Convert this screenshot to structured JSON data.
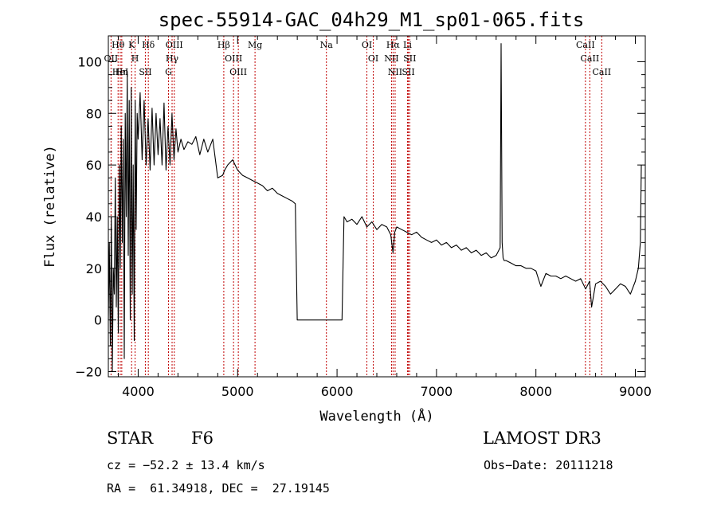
{
  "chart_data": {
    "type": "line",
    "title": "spec-55914-GAC_04h29_M1_sp01-065.fits",
    "xlabel": "Wavelength (Å)",
    "ylabel": "Flux (relative)",
    "xlim": [
      3700,
      9100
    ],
    "ylim": [
      -22,
      110
    ],
    "xticks": [
      4000,
      5000,
      6000,
      7000,
      8000,
      9000
    ],
    "yticks": [
      -20,
      0,
      20,
      40,
      60,
      80,
      100
    ],
    "xtick_labels": [
      "4000",
      "5000",
      "6000",
      "7000",
      "8000",
      "9000"
    ],
    "ytick_labels": [
      "−20",
      "0",
      "20",
      "40",
      "60",
      "80",
      "100"
    ],
    "series": [
      {
        "name": "flux",
        "x": [
          3700,
          3710,
          3720,
          3730,
          3740,
          3750,
          3760,
          3770,
          3780,
          3790,
          3800,
          3810,
          3820,
          3830,
          3840,
          3850,
          3860,
          3870,
          3880,
          3890,
          3900,
          3910,
          3920,
          3930,
          3940,
          3950,
          3960,
          3970,
          3980,
          3990,
          4000,
          4020,
          4040,
          4060,
          4080,
          4100,
          4120,
          4140,
          4160,
          4180,
          4200,
          4220,
          4240,
          4260,
          4280,
          4300,
          4320,
          4340,
          4360,
          4380,
          4400,
          4430,
          4460,
          4500,
          4540,
          4580,
          4620,
          4660,
          4700,
          4750,
          4800,
          4850,
          4870,
          4900,
          4950,
          5000,
          5050,
          5100,
          5150,
          5200,
          5250,
          5300,
          5350,
          5400,
          5450,
          5500,
          5550,
          5580,
          5600,
          6050,
          6070,
          6100,
          6150,
          6200,
          6250,
          6300,
          6350,
          6400,
          6450,
          6500,
          6540,
          6563,
          6580,
          6600,
          6650,
          6700,
          6750,
          6800,
          6850,
          6900,
          6950,
          7000,
          7050,
          7100,
          7150,
          7200,
          7250,
          7300,
          7350,
          7400,
          7450,
          7500,
          7550,
          7600,
          7640,
          7650,
          7660,
          7670,
          7680,
          7700,
          7750,
          7800,
          7850,
          7900,
          7950,
          8000,
          8050,
          8100,
          8150,
          8200,
          8250,
          8300,
          8350,
          8400,
          8450,
          8500,
          8540,
          8560,
          8600,
          8650,
          8700,
          8750,
          8800,
          8850,
          8900,
          8950,
          9000,
          9030,
          9050,
          9060
        ],
        "y": [
          0,
          30,
          -10,
          40,
          -20,
          20,
          10,
          55,
          5,
          40,
          -5,
          60,
          20,
          75,
          30,
          70,
          -15,
          80,
          40,
          95,
          25,
          85,
          0,
          90,
          10,
          60,
          -8,
          85,
          35,
          80,
          70,
          88,
          62,
          85,
          60,
          78,
          58,
          82,
          60,
          80,
          64,
          78,
          60,
          84,
          58,
          75,
          60,
          80,
          62,
          74,
          65,
          70,
          66,
          69,
          68,
          71,
          64,
          70,
          65,
          70,
          55,
          56,
          58,
          60,
          62,
          58,
          56,
          55,
          54,
          53,
          52,
          50,
          51,
          49,
          48,
          47,
          46,
          45,
          0,
          0,
          40,
          38,
          39,
          37,
          40,
          36,
          38,
          35,
          37,
          36,
          33,
          26,
          34,
          36,
          35,
          34,
          33,
          34,
          32,
          31,
          30,
          31,
          29,
          30,
          28,
          29,
          27,
          28,
          26,
          27,
          25,
          26,
          24,
          25,
          28,
          107,
          30,
          24,
          23,
          23,
          22,
          21,
          21,
          20,
          20,
          19,
          13,
          18,
          17,
          17,
          16,
          17,
          16,
          15,
          16,
          12,
          15,
          5,
          14,
          15,
          13,
          10,
          12,
          14,
          13,
          10,
          15,
          20,
          30,
          60
        ]
      }
    ],
    "lines": [
      {
        "name": "Hθ",
        "x": 3798
      },
      {
        "name": "OII",
        "x": 3727
      },
      {
        "name": "HeI",
        "x": 3820
      },
      {
        "name": "Hη",
        "x": 3835
      },
      {
        "name": "K",
        "x": 3934
      },
      {
        "name": "H",
        "x": 3969
      },
      {
        "name": "Hδ",
        "x": 4102
      },
      {
        "name": "SII",
        "x": 4072
      },
      {
        "name": "OIII",
        "x": 4363
      },
      {
        "name": "Hγ",
        "x": 4341
      },
      {
        "name": "G",
        "x": 4305
      },
      {
        "name": "Hβ",
        "x": 4861
      },
      {
        "name": "OIII",
        "x": 4959
      },
      {
        "name": "OIII",
        "x": 5007
      },
      {
        "name": "Mg",
        "x": 5175
      },
      {
        "name": "Na",
        "x": 5893
      },
      {
        "name": "OI",
        "x": 6300
      },
      {
        "name": "OI",
        "x": 6364
      },
      {
        "name": "Hα",
        "x": 6563
      },
      {
        "name": "NII",
        "x": 6548
      },
      {
        "name": "NII",
        "x": 6584
      },
      {
        "name": "Li",
        "x": 6708
      },
      {
        "name": "SII",
        "x": 6717
      },
      {
        "name": "SII",
        "x": 6731
      },
      {
        "name": "CaII",
        "x": 8498
      },
      {
        "name": "CaII",
        "x": 8542
      },
      {
        "name": "CaII",
        "x": 8662
      }
    ]
  },
  "info": {
    "object_class": "STAR",
    "subclass": "F6",
    "survey": "LAMOST DR3",
    "redshift": "cz = −52.2 ± 13.4 km/s",
    "obs_date": "Obs−Date: 20111218",
    "coords": "RA =  61.34918, DEC =  27.19145"
  },
  "colors": {
    "spectrum": "#000000",
    "line_marker": "#c00000"
  }
}
